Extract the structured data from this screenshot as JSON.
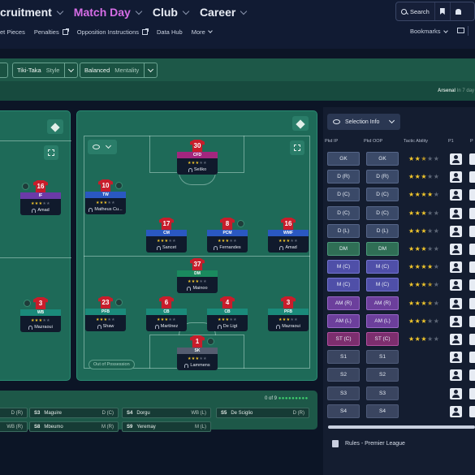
{
  "nav": {
    "items": [
      {
        "label": "cruitment",
        "active": false
      },
      {
        "label": "Match Day",
        "active": true
      },
      {
        "label": "Club",
        "active": false
      },
      {
        "label": "Career",
        "active": false
      }
    ],
    "search_label": "Search",
    "bookmarks_label": "Bookmarks"
  },
  "subnav": {
    "items": [
      {
        "label": "et Pieces",
        "external": false
      },
      {
        "label": "Penalties",
        "external": true
      },
      {
        "label": "Opposition Instructions",
        "external": true
      },
      {
        "label": "Data Hub",
        "external": false
      },
      {
        "label": "More",
        "dropdown": true
      }
    ]
  },
  "tactic_bar": {
    "style": {
      "value": "Tiki-Taka",
      "label": "Style"
    },
    "mentality": {
      "value": "Balanced",
      "label": "Mentality"
    }
  },
  "fixture": {
    "opponent": "Arsenal",
    "when": "In 7 day"
  },
  "pitch": {
    "out_of_possession": "Out of Possession",
    "partial_players": [
      {
        "number": "16",
        "role": "IF",
        "name": "Amad",
        "stars": 3,
        "role_color": "#6b3aa8"
      },
      {
        "number": "3",
        "role": "WB",
        "name": "Mazraoui",
        "stars": 3,
        "role_color": "#1a8a7a"
      }
    ],
    "players": [
      {
        "id": "cfd",
        "number": "30",
        "role": "CFD",
        "name": "Šeško",
        "stars": 3,
        "role_color": "#a3267e"
      },
      {
        "id": "tw",
        "number": "10",
        "role": "TW",
        "name": "Matheus Cu...",
        "stars": 3,
        "role_color": "#2a58c2"
      },
      {
        "id": "cm",
        "number": "17",
        "role": "CM",
        "name": "Sancet",
        "stars": 3,
        "role_color": "#2a58c2"
      },
      {
        "id": "pcm",
        "number": "8",
        "role": "PCM",
        "name": "Fernandes",
        "stars": 3,
        "role_color": "#2a58c2"
      },
      {
        "id": "wmf",
        "number": "16",
        "role": "WMF",
        "name": "Amad",
        "stars": 3,
        "role_color": "#2a58c2"
      },
      {
        "id": "dm",
        "number": "37",
        "role": "DM",
        "name": "Mainoo",
        "stars": 3,
        "role_color": "#1a8a5e"
      },
      {
        "id": "pfb-l",
        "number": "23",
        "role": "PFB",
        "name": "Shaw",
        "stars": 3,
        "role_color": "#1a8a7a"
      },
      {
        "id": "cb-l",
        "number": "6",
        "role": "CB",
        "name": "Martínez",
        "stars": 3,
        "role_color": "#1a8a7a"
      },
      {
        "id": "cb-r",
        "number": "4",
        "role": "CB",
        "name": "De Ligt",
        "stars": 3,
        "role_color": "#1a8a7a"
      },
      {
        "id": "pfb-r",
        "number": "3",
        "role": "PFB",
        "name": "Mazraoui",
        "stars": 3,
        "role_color": "#1a8a7a"
      },
      {
        "id": "sk",
        "number": "1",
        "role": "SK",
        "name": "Lammens",
        "stars": 3,
        "role_color": "#555d70"
      }
    ]
  },
  "subs": {
    "count_text": "0 of 9",
    "rows": [
      {
        "slot": "",
        "name": "",
        "pos": "D (R)"
      },
      {
        "slot": "S3",
        "name": "Maguire",
        "pos": "D (C)"
      },
      {
        "slot": "S4",
        "name": "Dorgu",
        "pos": "WB (L)"
      },
      {
        "slot": "S5",
        "name": "De Sciglio",
        "pos": "D (R)"
      },
      {
        "slot": "",
        "name": "",
        "pos": "WB (R)"
      },
      {
        "slot": "S8",
        "name": "Mbeumo",
        "pos": "M (R)"
      },
      {
        "slot": "S9",
        "name": "Yeremay",
        "pos": "M (L)"
      }
    ]
  },
  "selection_panel": {
    "dropdown_label": "Selection Info",
    "headers": {
      "ip": "Pkd IP",
      "oop": "Pkd OOP",
      "ability": "Tactic Ability",
      "p1": "P1",
      "p2": "P"
    },
    "rows": [
      {
        "ip": "GK",
        "oop": "GK",
        "kind": "gk",
        "stars": 2.5
      },
      {
        "ip": "D (R)",
        "oop": "D (R)",
        "kind": "d",
        "stars": 3
      },
      {
        "ip": "D (C)",
        "oop": "D (C)",
        "kind": "d",
        "stars": 4
      },
      {
        "ip": "D (C)",
        "oop": "D (C)",
        "kind": "d",
        "stars": 3
      },
      {
        "ip": "D (L)",
        "oop": "D (L)",
        "kind": "d",
        "stars": 3
      },
      {
        "ip": "DM",
        "oop": "DM",
        "kind": "dm",
        "stars": 3
      },
      {
        "ip": "M (C)",
        "oop": "M (C)",
        "kind": "m",
        "stars": 4
      },
      {
        "ip": "M (C)",
        "oop": "M (C)",
        "kind": "m",
        "stars": 3.5
      },
      {
        "ip": "AM (R)",
        "oop": "AM (R)",
        "kind": "am",
        "stars": 3.5
      },
      {
        "ip": "AM (L)",
        "oop": "AM (L)",
        "kind": "am",
        "stars": 3
      },
      {
        "ip": "ST (C)",
        "oop": "ST (C)",
        "kind": "st",
        "stars": 3
      },
      {
        "ip": "S1",
        "oop": "S1",
        "kind": "s",
        "stars": null
      },
      {
        "ip": "S2",
        "oop": "S2",
        "kind": "s",
        "stars": null
      },
      {
        "ip": "S3",
        "oop": "S3",
        "kind": "s",
        "stars": null
      },
      {
        "ip": "S4",
        "oop": "S4",
        "kind": "s",
        "stars": null
      }
    ],
    "rules": "Rules - Premier League"
  }
}
